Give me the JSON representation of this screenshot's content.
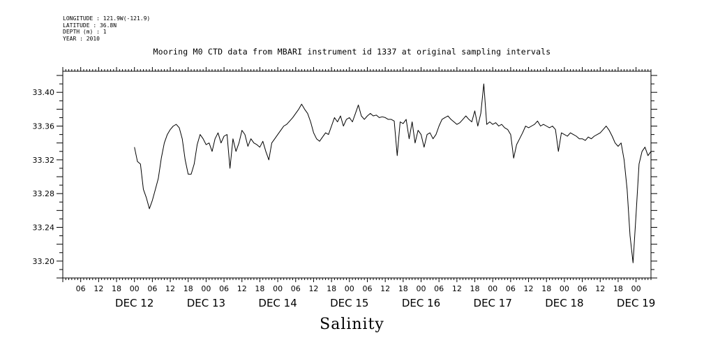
{
  "metadata": [
    "LONGITUDE : 121.9W(-121.9)",
    "LATITUDE : 36.8N",
    "DEPTH (m) : 1",
    "YEAR : 2010"
  ],
  "chart_data": {
    "type": "line",
    "title": "Mooring M0 CTD data from MBARI instrument id 1337 at original sampling intervals",
    "xlabel": "Salinity",
    "ylabel": "",
    "xlim": [
      "DEC 11 00:00",
      "DEC 19 05:00"
    ],
    "ylim": [
      33.18,
      33.425
    ],
    "y_ticks": [
      "33.20",
      "33.24",
      "33.28",
      "33.32",
      "33.36",
      "33.40"
    ],
    "hour_tick_labels": [
      "06",
      "12",
      "18",
      "00",
      "06",
      "12",
      "18",
      "00",
      "06",
      "12",
      "18",
      "00",
      "06",
      "12",
      "18",
      "00",
      "06",
      "12",
      "18",
      "00",
      "06",
      "12",
      "18",
      "00",
      "06",
      "12",
      "18",
      "00",
      "06",
      "12",
      "18",
      "00"
    ],
    "day_labels": [
      {
        "label": "DEC 12",
        "at": "DEC 12 00:00"
      },
      {
        "label": "DEC 13",
        "at": "DEC 13 00:00"
      },
      {
        "label": "DEC 14",
        "at": "DEC 14 00:00"
      },
      {
        "label": "DEC 15",
        "at": "DEC 15 00:00"
      },
      {
        "label": "DEC 16",
        "at": "DEC 16 00:00"
      },
      {
        "label": "DEC 17",
        "at": "DEC 17 00:00"
      },
      {
        "label": "DEC 18",
        "at": "DEC 18 00:00"
      },
      {
        "label": "DEC 19",
        "at": "DEC 19 00:00"
      }
    ],
    "grid": false,
    "series": [
      {
        "color": "#000000",
        "points": [
          [
            "DEC 12 00:00",
            33.335
          ],
          [
            "DEC 12 01:00",
            33.318
          ],
          [
            "DEC 12 02:00",
            33.315
          ],
          [
            "DEC 12 03:00",
            33.285
          ],
          [
            "DEC 12 04:00",
            33.275
          ],
          [
            "DEC 12 05:00",
            33.262
          ],
          [
            "DEC 12 06:00",
            33.272
          ],
          [
            "DEC 12 07:00",
            33.285
          ],
          [
            "DEC 12 08:00",
            33.298
          ],
          [
            "DEC 12 09:00",
            33.322
          ],
          [
            "DEC 12 10:00",
            33.34
          ],
          [
            "DEC 12 11:00",
            33.35
          ],
          [
            "DEC 12 12:00",
            33.356
          ],
          [
            "DEC 12 13:00",
            33.36
          ],
          [
            "DEC 12 14:00",
            33.362
          ],
          [
            "DEC 12 15:00",
            33.358
          ],
          [
            "DEC 12 16:00",
            33.345
          ],
          [
            "DEC 12 17:00",
            33.32
          ],
          [
            "DEC 12 18:00",
            33.303
          ],
          [
            "DEC 12 19:00",
            33.303
          ],
          [
            "DEC 12 20:00",
            33.315
          ],
          [
            "DEC 12 21:00",
            33.338
          ],
          [
            "DEC 12 22:00",
            33.35
          ],
          [
            "DEC 12 23:00",
            33.345
          ],
          [
            "DEC 13 00:00",
            33.338
          ],
          [
            "DEC 13 01:00",
            33.34
          ],
          [
            "DEC 13 02:00",
            33.33
          ],
          [
            "DEC 13 03:00",
            33.345
          ],
          [
            "DEC 13 04:00",
            33.352
          ],
          [
            "DEC 13 05:00",
            33.34
          ],
          [
            "DEC 13 06:00",
            33.348
          ],
          [
            "DEC 13 07:00",
            33.35
          ],
          [
            "DEC 13 08:00",
            33.31
          ],
          [
            "DEC 13 09:00",
            33.345
          ],
          [
            "DEC 13 10:00",
            33.33
          ],
          [
            "DEC 13 11:00",
            33.34
          ],
          [
            "DEC 13 12:00",
            33.355
          ],
          [
            "DEC 13 13:00",
            33.35
          ],
          [
            "DEC 13 14:00",
            33.336
          ],
          [
            "DEC 13 15:00",
            33.345
          ],
          [
            "DEC 13 16:00",
            33.34
          ],
          [
            "DEC 13 17:00",
            33.338
          ],
          [
            "DEC 13 18:00",
            33.335
          ],
          [
            "DEC 13 19:00",
            33.342
          ],
          [
            "DEC 13 20:00",
            33.33
          ],
          [
            "DEC 13 21:00",
            33.32
          ],
          [
            "DEC 13 22:00",
            33.34
          ],
          [
            "DEC 13 23:00",
            33.345
          ],
          [
            "DEC 14 00:00",
            33.35
          ],
          [
            "DEC 14 01:00",
            33.355
          ],
          [
            "DEC 14 02:00",
            33.36
          ],
          [
            "DEC 14 03:00",
            33.362
          ],
          [
            "DEC 14 04:00",
            33.366
          ],
          [
            "DEC 14 05:00",
            33.37
          ],
          [
            "DEC 14 06:00",
            33.375
          ],
          [
            "DEC 14 07:00",
            33.38
          ],
          [
            "DEC 14 08:00",
            33.386
          ],
          [
            "DEC 14 09:00",
            33.38
          ],
          [
            "DEC 14 10:00",
            33.375
          ],
          [
            "DEC 14 11:00",
            33.365
          ],
          [
            "DEC 14 12:00",
            33.352
          ],
          [
            "DEC 14 13:00",
            33.345
          ],
          [
            "DEC 14 14:00",
            33.342
          ],
          [
            "DEC 14 15:00",
            33.347
          ],
          [
            "DEC 14 16:00",
            33.352
          ],
          [
            "DEC 14 17:00",
            33.35
          ],
          [
            "DEC 14 18:00",
            33.36
          ],
          [
            "DEC 14 19:00",
            33.37
          ],
          [
            "DEC 14 20:00",
            33.365
          ],
          [
            "DEC 14 21:00",
            33.372
          ],
          [
            "DEC 14 22:00",
            33.36
          ],
          [
            "DEC 14 23:00",
            33.368
          ],
          [
            "DEC 15 00:00",
            33.37
          ],
          [
            "DEC 15 01:00",
            33.365
          ],
          [
            "DEC 15 02:00",
            33.375
          ],
          [
            "DEC 15 03:00",
            33.385
          ],
          [
            "DEC 15 04:00",
            33.372
          ],
          [
            "DEC 15 05:00",
            33.368
          ],
          [
            "DEC 15 06:00",
            33.372
          ],
          [
            "DEC 15 07:00",
            33.375
          ],
          [
            "DEC 15 08:00",
            33.372
          ],
          [
            "DEC 15 09:00",
            33.373
          ],
          [
            "DEC 15 10:00",
            33.37
          ],
          [
            "DEC 15 11:00",
            33.371
          ],
          [
            "DEC 15 12:00",
            33.37
          ],
          [
            "DEC 15 13:00",
            33.368
          ],
          [
            "DEC 15 14:00",
            33.368
          ],
          [
            "DEC 15 15:00",
            33.366
          ],
          [
            "DEC 15 16:00",
            33.325
          ],
          [
            "DEC 15 17:00",
            33.365
          ],
          [
            "DEC 15 18:00",
            33.363
          ],
          [
            "DEC 15 19:00",
            33.368
          ],
          [
            "DEC 15 20:00",
            33.345
          ],
          [
            "DEC 15 21:00",
            33.365
          ],
          [
            "DEC 15 22:00",
            33.34
          ],
          [
            "DEC 15 23:00",
            33.355
          ],
          [
            "DEC 16 00:00",
            33.35
          ],
          [
            "DEC 16 01:00",
            33.335
          ],
          [
            "DEC 16 02:00",
            33.35
          ],
          [
            "DEC 16 03:00",
            33.352
          ],
          [
            "DEC 16 04:00",
            33.345
          ],
          [
            "DEC 16 05:00",
            33.35
          ],
          [
            "DEC 16 06:00",
            33.36
          ],
          [
            "DEC 16 07:00",
            33.368
          ],
          [
            "DEC 16 08:00",
            33.37
          ],
          [
            "DEC 16 09:00",
            33.372
          ],
          [
            "DEC 16 10:00",
            33.368
          ],
          [
            "DEC 16 11:00",
            33.365
          ],
          [
            "DEC 16 12:00",
            33.362
          ],
          [
            "DEC 16 13:00",
            33.364
          ],
          [
            "DEC 16 14:00",
            33.368
          ],
          [
            "DEC 16 15:00",
            33.372
          ],
          [
            "DEC 16 16:00",
            33.368
          ],
          [
            "DEC 16 17:00",
            33.365
          ],
          [
            "DEC 16 18:00",
            33.378
          ],
          [
            "DEC 16 19:00",
            33.36
          ],
          [
            "DEC 16 20:00",
            33.375
          ],
          [
            "DEC 16 21:00",
            33.41
          ],
          [
            "DEC 16 22:00",
            33.362
          ],
          [
            "DEC 16 23:00",
            33.365
          ],
          [
            "DEC 17 00:00",
            33.362
          ],
          [
            "DEC 17 01:00",
            33.364
          ],
          [
            "DEC 17 02:00",
            33.36
          ],
          [
            "DEC 17 03:00",
            33.362
          ],
          [
            "DEC 17 04:00",
            33.358
          ],
          [
            "DEC 17 05:00",
            33.356
          ],
          [
            "DEC 17 06:00",
            33.35
          ],
          [
            "DEC 17 07:00",
            33.322
          ],
          [
            "DEC 17 08:00",
            33.338
          ],
          [
            "DEC 17 09:00",
            33.345
          ],
          [
            "DEC 17 10:00",
            33.352
          ],
          [
            "DEC 17 11:00",
            33.36
          ],
          [
            "DEC 17 12:00",
            33.358
          ],
          [
            "DEC 17 13:00",
            33.36
          ],
          [
            "DEC 17 14:00",
            33.362
          ],
          [
            "DEC 17 15:00",
            33.366
          ],
          [
            "DEC 17 16:00",
            33.36
          ],
          [
            "DEC 17 17:00",
            33.362
          ],
          [
            "DEC 17 18:00",
            33.36
          ],
          [
            "DEC 17 19:00",
            33.358
          ],
          [
            "DEC 17 20:00",
            33.36
          ],
          [
            "DEC 17 21:00",
            33.356
          ],
          [
            "DEC 17 22:00",
            33.33
          ],
          [
            "DEC 17 23:00",
            33.352
          ],
          [
            "DEC 18 00:00",
            33.35
          ],
          [
            "DEC 18 01:00",
            33.348
          ],
          [
            "DEC 18 02:00",
            33.352
          ],
          [
            "DEC 18 03:00",
            33.35
          ],
          [
            "DEC 18 04:00",
            33.348
          ],
          [
            "DEC 18 05:00",
            33.345
          ],
          [
            "DEC 18 06:00",
            33.345
          ],
          [
            "DEC 18 07:00",
            33.343
          ],
          [
            "DEC 18 08:00",
            33.347
          ],
          [
            "DEC 18 09:00",
            33.345
          ],
          [
            "DEC 18 10:00",
            33.348
          ],
          [
            "DEC 18 11:00",
            33.35
          ],
          [
            "DEC 18 12:00",
            33.352
          ],
          [
            "DEC 18 13:00",
            33.356
          ],
          [
            "DEC 18 14:00",
            33.36
          ],
          [
            "DEC 18 15:00",
            33.355
          ],
          [
            "DEC 18 16:00",
            33.348
          ],
          [
            "DEC 18 17:00",
            33.34
          ],
          [
            "DEC 18 18:00",
            33.336
          ],
          [
            "DEC 18 19:00",
            33.34
          ],
          [
            "DEC 18 20:00",
            33.32
          ],
          [
            "DEC 18 21:00",
            33.285
          ],
          [
            "DEC 18 22:00",
            33.23
          ],
          [
            "DEC 18 23:00",
            33.198
          ],
          [
            "DEC 19 00:00",
            33.255
          ],
          [
            "DEC 19 01:00",
            33.315
          ],
          [
            "DEC 19 02:00",
            33.33
          ],
          [
            "DEC 19 03:00",
            33.335
          ],
          [
            "DEC 19 04:00",
            33.325
          ],
          [
            "DEC 19 05:00",
            33.33
          ]
        ]
      }
    ]
  }
}
